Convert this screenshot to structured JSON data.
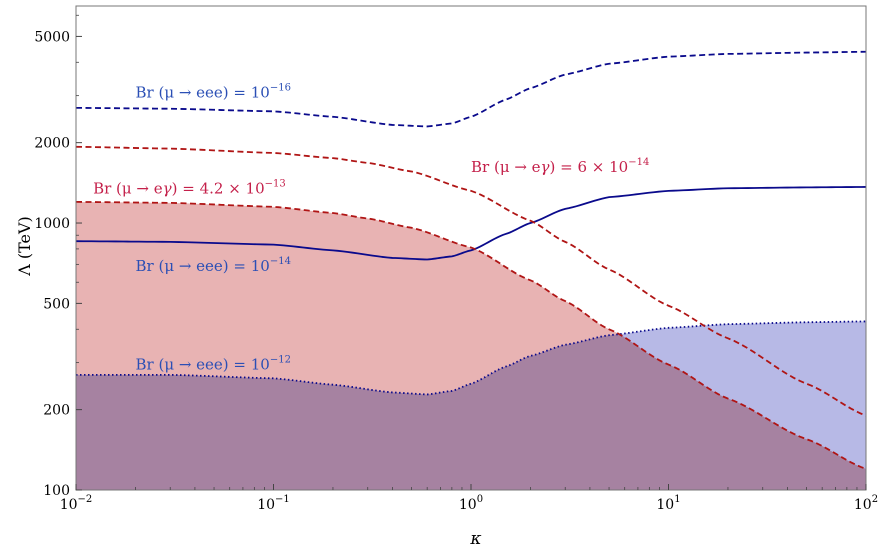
{
  "colors": {
    "eee_line": "#0a0a8c",
    "eee_text": "#2b4fb5",
    "eg_line": "#b01515",
    "eg_text": "#c4204a",
    "fill_red": "#e8b3b3",
    "fill_blue": "#b7b9e6",
    "axis": "#777777"
  },
  "chart_data": {
    "type": "line",
    "xlabel": "κ",
    "ylabel": "Λ (TeV)",
    "x_scale": "log",
    "y_scale": "log",
    "xlim": [
      0.01,
      100
    ],
    "ylim": [
      100,
      6500
    ],
    "x_ticks": [
      {
        "value": 0.01,
        "base": "10",
        "exp": "−2"
      },
      {
        "value": 0.1,
        "base": "10",
        "exp": "−1"
      },
      {
        "value": 1,
        "base": "10",
        "exp": "0"
      },
      {
        "value": 10,
        "base": "10",
        "exp": "1"
      },
      {
        "value": 100,
        "base": "10",
        "exp": "2"
      }
    ],
    "y_ticks": [
      {
        "value": 100,
        "label": "100"
      },
      {
        "value": 200,
        "label": "200"
      },
      {
        "value": 500,
        "label": "500"
      },
      {
        "value": 1000,
        "label": "1000"
      },
      {
        "value": 2000,
        "label": "2000"
      },
      {
        "value": 5000,
        "label": "5000"
      }
    ],
    "series": [
      {
        "name": "Br(μ → eee) = 10^−16",
        "style": "dashed",
        "color_key": "eee_line",
        "fill": null,
        "x": [
          0.01,
          0.03,
          0.1,
          0.2,
          0.4,
          0.6,
          0.8,
          1,
          1.5,
          2,
          3,
          5,
          10,
          20,
          50,
          100
        ],
        "y": [
          2700,
          2680,
          2620,
          2500,
          2330,
          2300,
          2360,
          2500,
          2900,
          3200,
          3600,
          3950,
          4200,
          4300,
          4350,
          4380
        ]
      },
      {
        "name": "Br(μ → eee) = 10^−14",
        "style": "solid",
        "color_key": "eee_line",
        "fill": null,
        "x": [
          0.01,
          0.03,
          0.1,
          0.2,
          0.4,
          0.6,
          0.8,
          1,
          1.5,
          2,
          3,
          5,
          10,
          20,
          50,
          100
        ],
        "y": [
          855,
          850,
          830,
          790,
          740,
          730,
          750,
          790,
          910,
          1000,
          1130,
          1250,
          1320,
          1350,
          1360,
          1365
        ]
      },
      {
        "name": "Br(μ → eee) = 10^−12",
        "style": "dotted",
        "color_key": "eee_line",
        "fill": "fill_blue",
        "x": [
          0.01,
          0.03,
          0.1,
          0.2,
          0.4,
          0.6,
          0.8,
          1,
          1.5,
          2,
          3,
          5,
          10,
          20,
          50,
          100
        ],
        "y": [
          270,
          270,
          262,
          248,
          232,
          228,
          235,
          250,
          290,
          318,
          350,
          380,
          405,
          418,
          425,
          428
        ]
      },
      {
        "name": "Br(μ → eγ) = 6 × 10^−14",
        "style": "dashed",
        "color_key": "eg_line",
        "fill": null,
        "x": [
          0.01,
          0.03,
          0.1,
          0.2,
          0.3,
          0.5,
          1,
          2,
          3,
          5,
          10,
          20,
          50,
          100
        ],
        "y": [
          1930,
          1900,
          1830,
          1750,
          1680,
          1560,
          1320,
          1020,
          850,
          670,
          490,
          370,
          250,
          190
        ]
      },
      {
        "name": "Br(μ → eγ) = 4.2 × 10^−13",
        "style": "dashed",
        "color_key": "eg_line",
        "fill": "fill_red",
        "x": [
          0.01,
          0.03,
          0.1,
          0.2,
          0.3,
          0.5,
          1,
          2,
          3,
          5,
          10,
          20,
          50,
          100
        ],
        "y": [
          1200,
          1190,
          1150,
          1090,
          1040,
          960,
          810,
          610,
          510,
          400,
          295,
          220,
          155,
          120
        ]
      }
    ],
    "annotations": [
      {
        "label_pre": "Br (μ → eee) = 10",
        "exp": "−16",
        "color_key": "eee_text",
        "x": 0.02,
        "y": 2950
      },
      {
        "label_pre": "Br (μ → e",
        "gamma": "γ",
        "label_post": ") = 6 × 10",
        "exp": "−14",
        "color_key": "eg_text",
        "x": 1.0,
        "y": 1550
      },
      {
        "label_pre": "Br (μ → e",
        "gamma": "γ",
        "label_post": ") = 4.2 × 10",
        "exp": "−13",
        "color_key": "eg_text",
        "x": 0.0122,
        "y": 1290
      },
      {
        "label_pre": "Br (μ → eee) = 10",
        "exp": "−14",
        "color_key": "eee_text",
        "x": 0.02,
        "y": 660
      },
      {
        "label_pre": "Br (μ → eee) = 10",
        "exp": "−12",
        "color_key": "eee_text",
        "x": 0.02,
        "y": 283
      }
    ]
  }
}
